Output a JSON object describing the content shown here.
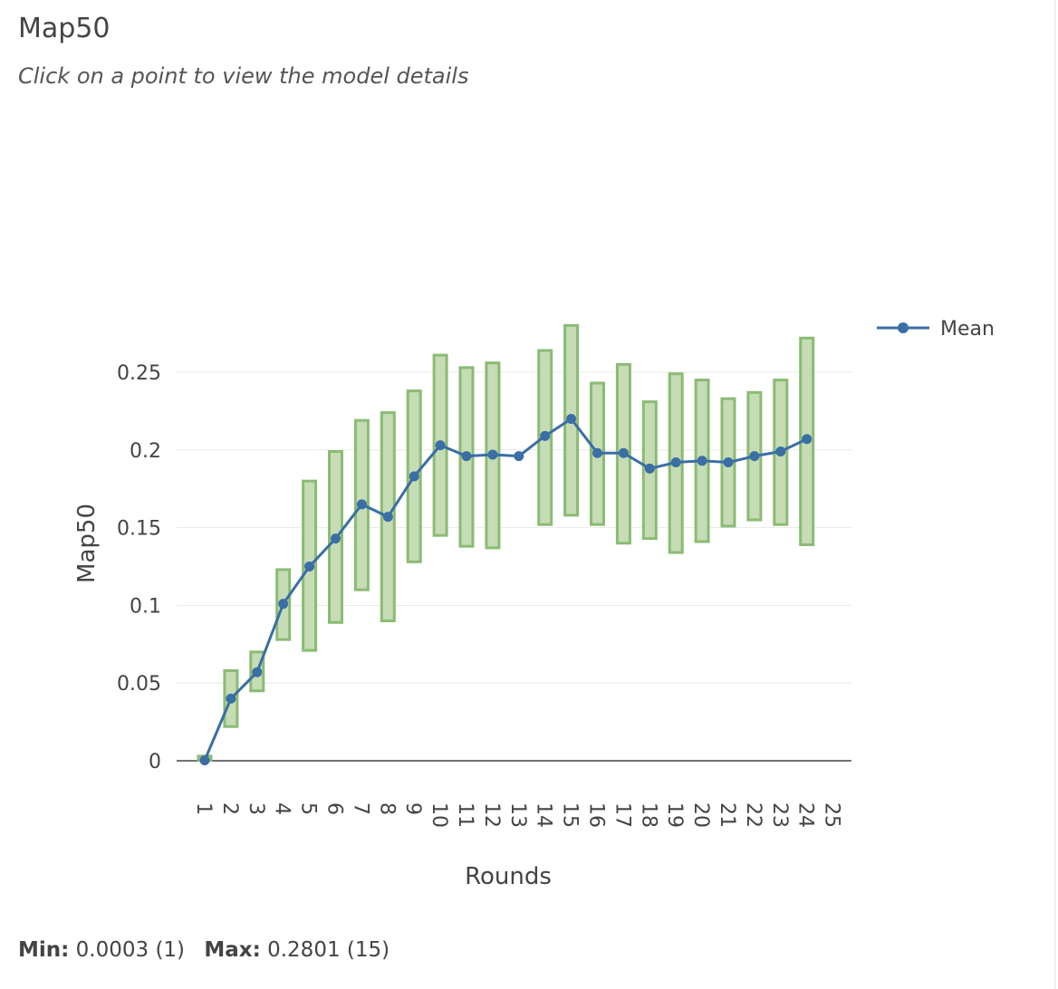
{
  "page": {
    "title": "Map50",
    "subtitle": "Click on a point to view the model details"
  },
  "stats": {
    "min_label": "Min:",
    "min_value": "0.0003 (1)",
    "max_label": "Max:",
    "max_value": "0.2801 (15)"
  },
  "chart_data": {
    "type": "line",
    "xlabel": "Rounds",
    "ylabel": "Map50",
    "categories": [
      "1",
      "2",
      "3",
      "4",
      "5",
      "6",
      "7",
      "8",
      "9",
      "10",
      "11",
      "12",
      "13",
      "14",
      "15",
      "16",
      "17",
      "18",
      "19",
      "20",
      "21",
      "22",
      "23",
      "24",
      "25"
    ],
    "y_ticks": [
      0,
      0.05,
      0.1,
      0.15,
      0.2,
      0.25
    ],
    "y_tick_labels": [
      "0",
      "0.05",
      "0.1",
      "0.15",
      "0.2",
      "0.25"
    ],
    "ylim": [
      0,
      0.29
    ],
    "legend": {
      "position": "top-right",
      "entries": [
        "Mean"
      ]
    },
    "grid": true,
    "colors": {
      "mean_line": "#3a6ea5",
      "range_fill": "#c5dcb5",
      "range_stroke": "#8bbb74",
      "grid": "#e8e8e8",
      "axis": "#444444"
    },
    "series": [
      {
        "name": "Mean",
        "x": [
          1,
          2,
          3,
          4,
          5,
          6,
          7,
          8,
          9,
          10,
          11,
          12,
          13,
          14,
          15,
          16,
          17,
          18,
          19,
          20,
          21,
          22,
          23,
          24
        ],
        "values": [
          0.0003,
          0.04,
          0.057,
          0.101,
          0.125,
          0.143,
          0.165,
          0.157,
          0.183,
          0.203,
          0.196,
          0.197,
          0.196,
          0.209,
          0.22,
          0.198,
          0.198,
          0.188,
          0.192,
          0.193,
          0.192,
          0.196,
          0.199,
          0.207
        ]
      }
    ],
    "ranges": [
      {
        "x": 1,
        "low": 0.0003,
        "high": 0.003
      },
      {
        "x": 2,
        "low": 0.022,
        "high": 0.058
      },
      {
        "x": 3,
        "low": 0.045,
        "high": 0.07
      },
      {
        "x": 4,
        "low": 0.078,
        "high": 0.123
      },
      {
        "x": 5,
        "low": 0.071,
        "high": 0.18
      },
      {
        "x": 6,
        "low": 0.089,
        "high": 0.199
      },
      {
        "x": 7,
        "low": 0.11,
        "high": 0.219
      },
      {
        "x": 8,
        "low": 0.09,
        "high": 0.224
      },
      {
        "x": 9,
        "low": 0.128,
        "high": 0.238
      },
      {
        "x": 10,
        "low": 0.145,
        "high": 0.261
      },
      {
        "x": 11,
        "low": 0.138,
        "high": 0.253
      },
      {
        "x": 12,
        "low": 0.137,
        "high": 0.256
      },
      {
        "x": 14,
        "low": 0.152,
        "high": 0.264
      },
      {
        "x": 15,
        "low": 0.158,
        "high": 0.2801
      },
      {
        "x": 16,
        "low": 0.152,
        "high": 0.243
      },
      {
        "x": 17,
        "low": 0.14,
        "high": 0.255
      },
      {
        "x": 18,
        "low": 0.143,
        "high": 0.231
      },
      {
        "x": 19,
        "low": 0.134,
        "high": 0.249
      },
      {
        "x": 20,
        "low": 0.141,
        "high": 0.245
      },
      {
        "x": 21,
        "low": 0.151,
        "high": 0.233
      },
      {
        "x": 22,
        "low": 0.155,
        "high": 0.237
      },
      {
        "x": 23,
        "low": 0.152,
        "high": 0.245
      },
      {
        "x": 24,
        "low": 0.139,
        "high": 0.272
      }
    ]
  }
}
